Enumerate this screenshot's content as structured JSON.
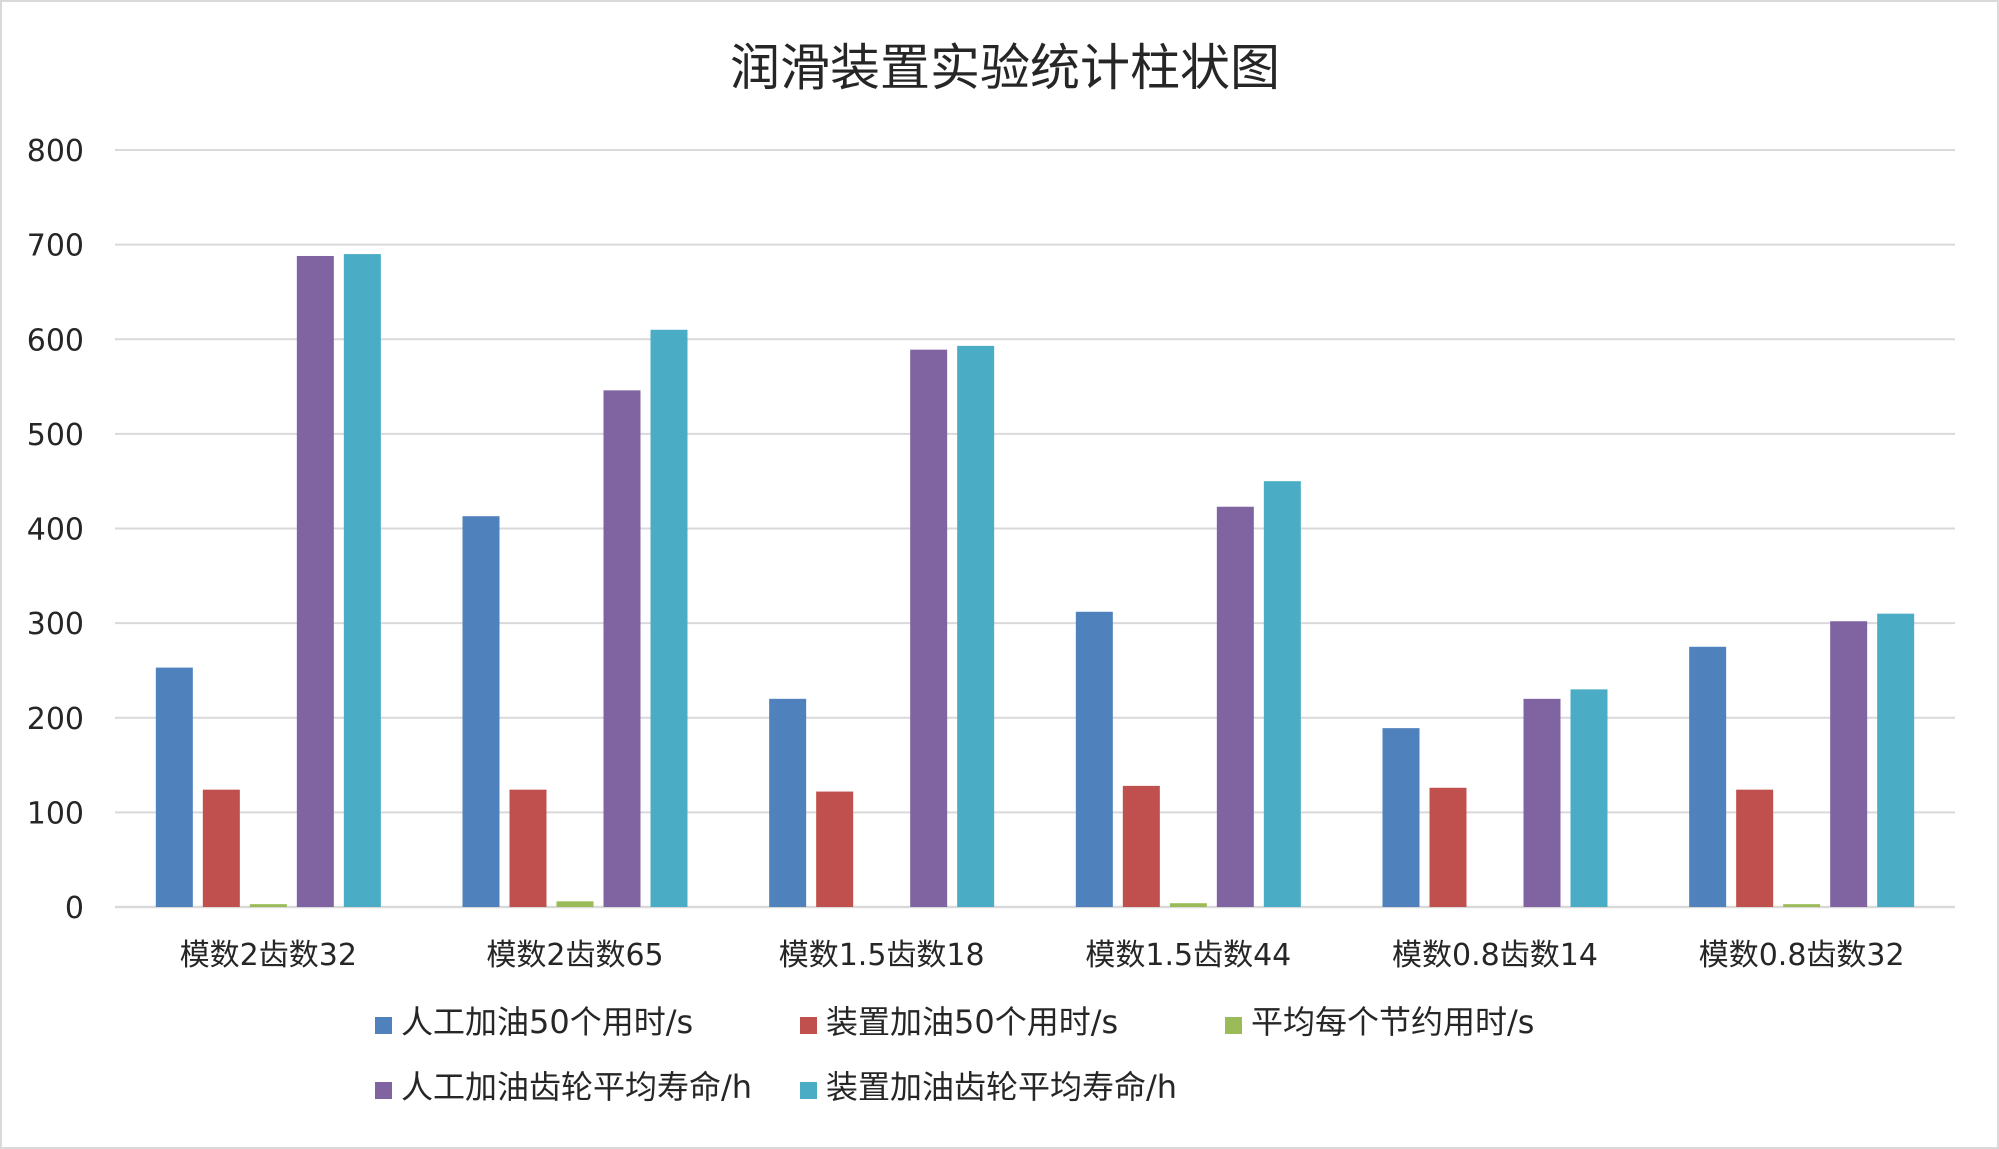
{
  "chart_data": {
    "type": "bar",
    "title": "润滑装置实验统计柱状图",
    "xlabel": "",
    "ylabel": "",
    "ylim": [
      0,
      800
    ],
    "yticks": [
      0,
      100,
      200,
      300,
      400,
      500,
      600,
      700,
      800
    ],
    "grid": true,
    "legend_position": "bottom",
    "categories": [
      "模数2齿数32",
      "模数2齿数65",
      "模数1.5齿数18",
      "模数1.5齿数44",
      "模数0.8齿数14",
      "模数0.8齿数32"
    ],
    "series": [
      {
        "name": "人工加油50个用时/s",
        "color": "#4f81bd",
        "values": [
          253,
          413,
          220,
          312,
          189,
          275
        ]
      },
      {
        "name": "装置加油50个用时/s",
        "color": "#c0504d",
        "values": [
          124,
          124,
          122,
          128,
          126,
          124
        ]
      },
      {
        "name": "平均每个节约用时/s",
        "color": "#9bbb59",
        "values": [
          3,
          6,
          0,
          4,
          0,
          3
        ]
      },
      {
        "name": "人工加油齿轮平均寿命/h",
        "color": "#8064a2",
        "values": [
          688,
          546,
          589,
          423,
          220,
          302
        ]
      },
      {
        "name": "装置加油齿轮平均寿命/h",
        "color": "#4bacc6",
        "values": [
          690,
          610,
          593,
          450,
          230,
          310
        ]
      }
    ]
  }
}
